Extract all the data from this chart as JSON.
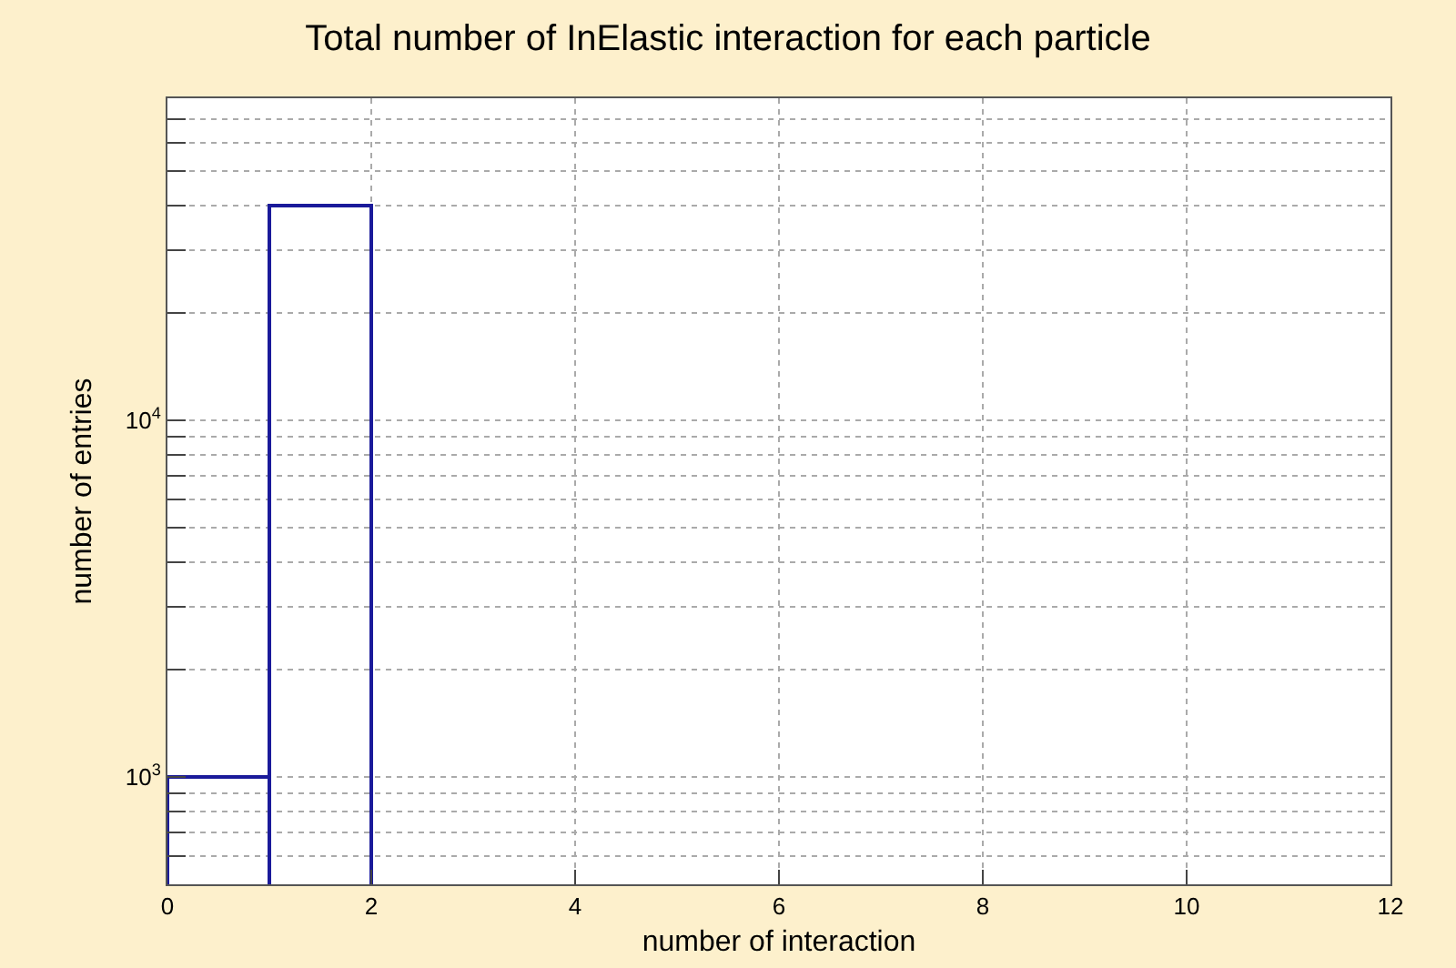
{
  "chart_data": {
    "type": "histogram",
    "title": "Total number of InElastic interaction for each particle",
    "xlabel": "number of interaction",
    "ylabel": "number of entries",
    "bins": [
      0,
      1,
      2,
      3,
      4,
      5,
      6,
      7,
      8,
      9,
      10,
      11,
      12
    ],
    "values": [
      1000,
      40000,
      null,
      null,
      null,
      null,
      null,
      null,
      null,
      null,
      null,
      null
    ],
    "color": "#1a1a9a",
    "log": true,
    "grid": true,
    "legend": false,
    "xlim": [
      0,
      12
    ],
    "xticks": [
      0,
      2,
      4,
      6,
      8,
      10,
      12
    ],
    "ylim": [
      500,
      80000
    ],
    "yticks": [
      {
        "value": 500,
        "label": null
      },
      {
        "value": 600,
        "label": null
      },
      {
        "value": 700,
        "label": null
      },
      {
        "value": 800,
        "label": null
      },
      {
        "value": 900,
        "label": null
      },
      {
        "value": 1000,
        "label": "10$^{3}$"
      },
      {
        "value": 2000,
        "label": null
      },
      {
        "value": 3000,
        "label": null
      },
      {
        "value": 4000,
        "label": null
      },
      {
        "value": 5000,
        "label": null
      },
      {
        "value": 6000,
        "label": null
      },
      {
        "value": 7000,
        "label": null
      },
      {
        "value": 8000,
        "label": null
      },
      {
        "value": 9000,
        "label": null
      },
      {
        "value": 10000,
        "label": "10$^{4}$"
      },
      {
        "value": 20000,
        "label": null
      },
      {
        "value": 30000,
        "label": null
      },
      {
        "value": 40000,
        "label": null
      },
      {
        "value": 50000,
        "label": null
      },
      {
        "value": 60000,
        "label": null
      },
      {
        "value": 70000,
        "label": null
      },
      {
        "value": 80000,
        "label": null
      }
    ]
  }
}
